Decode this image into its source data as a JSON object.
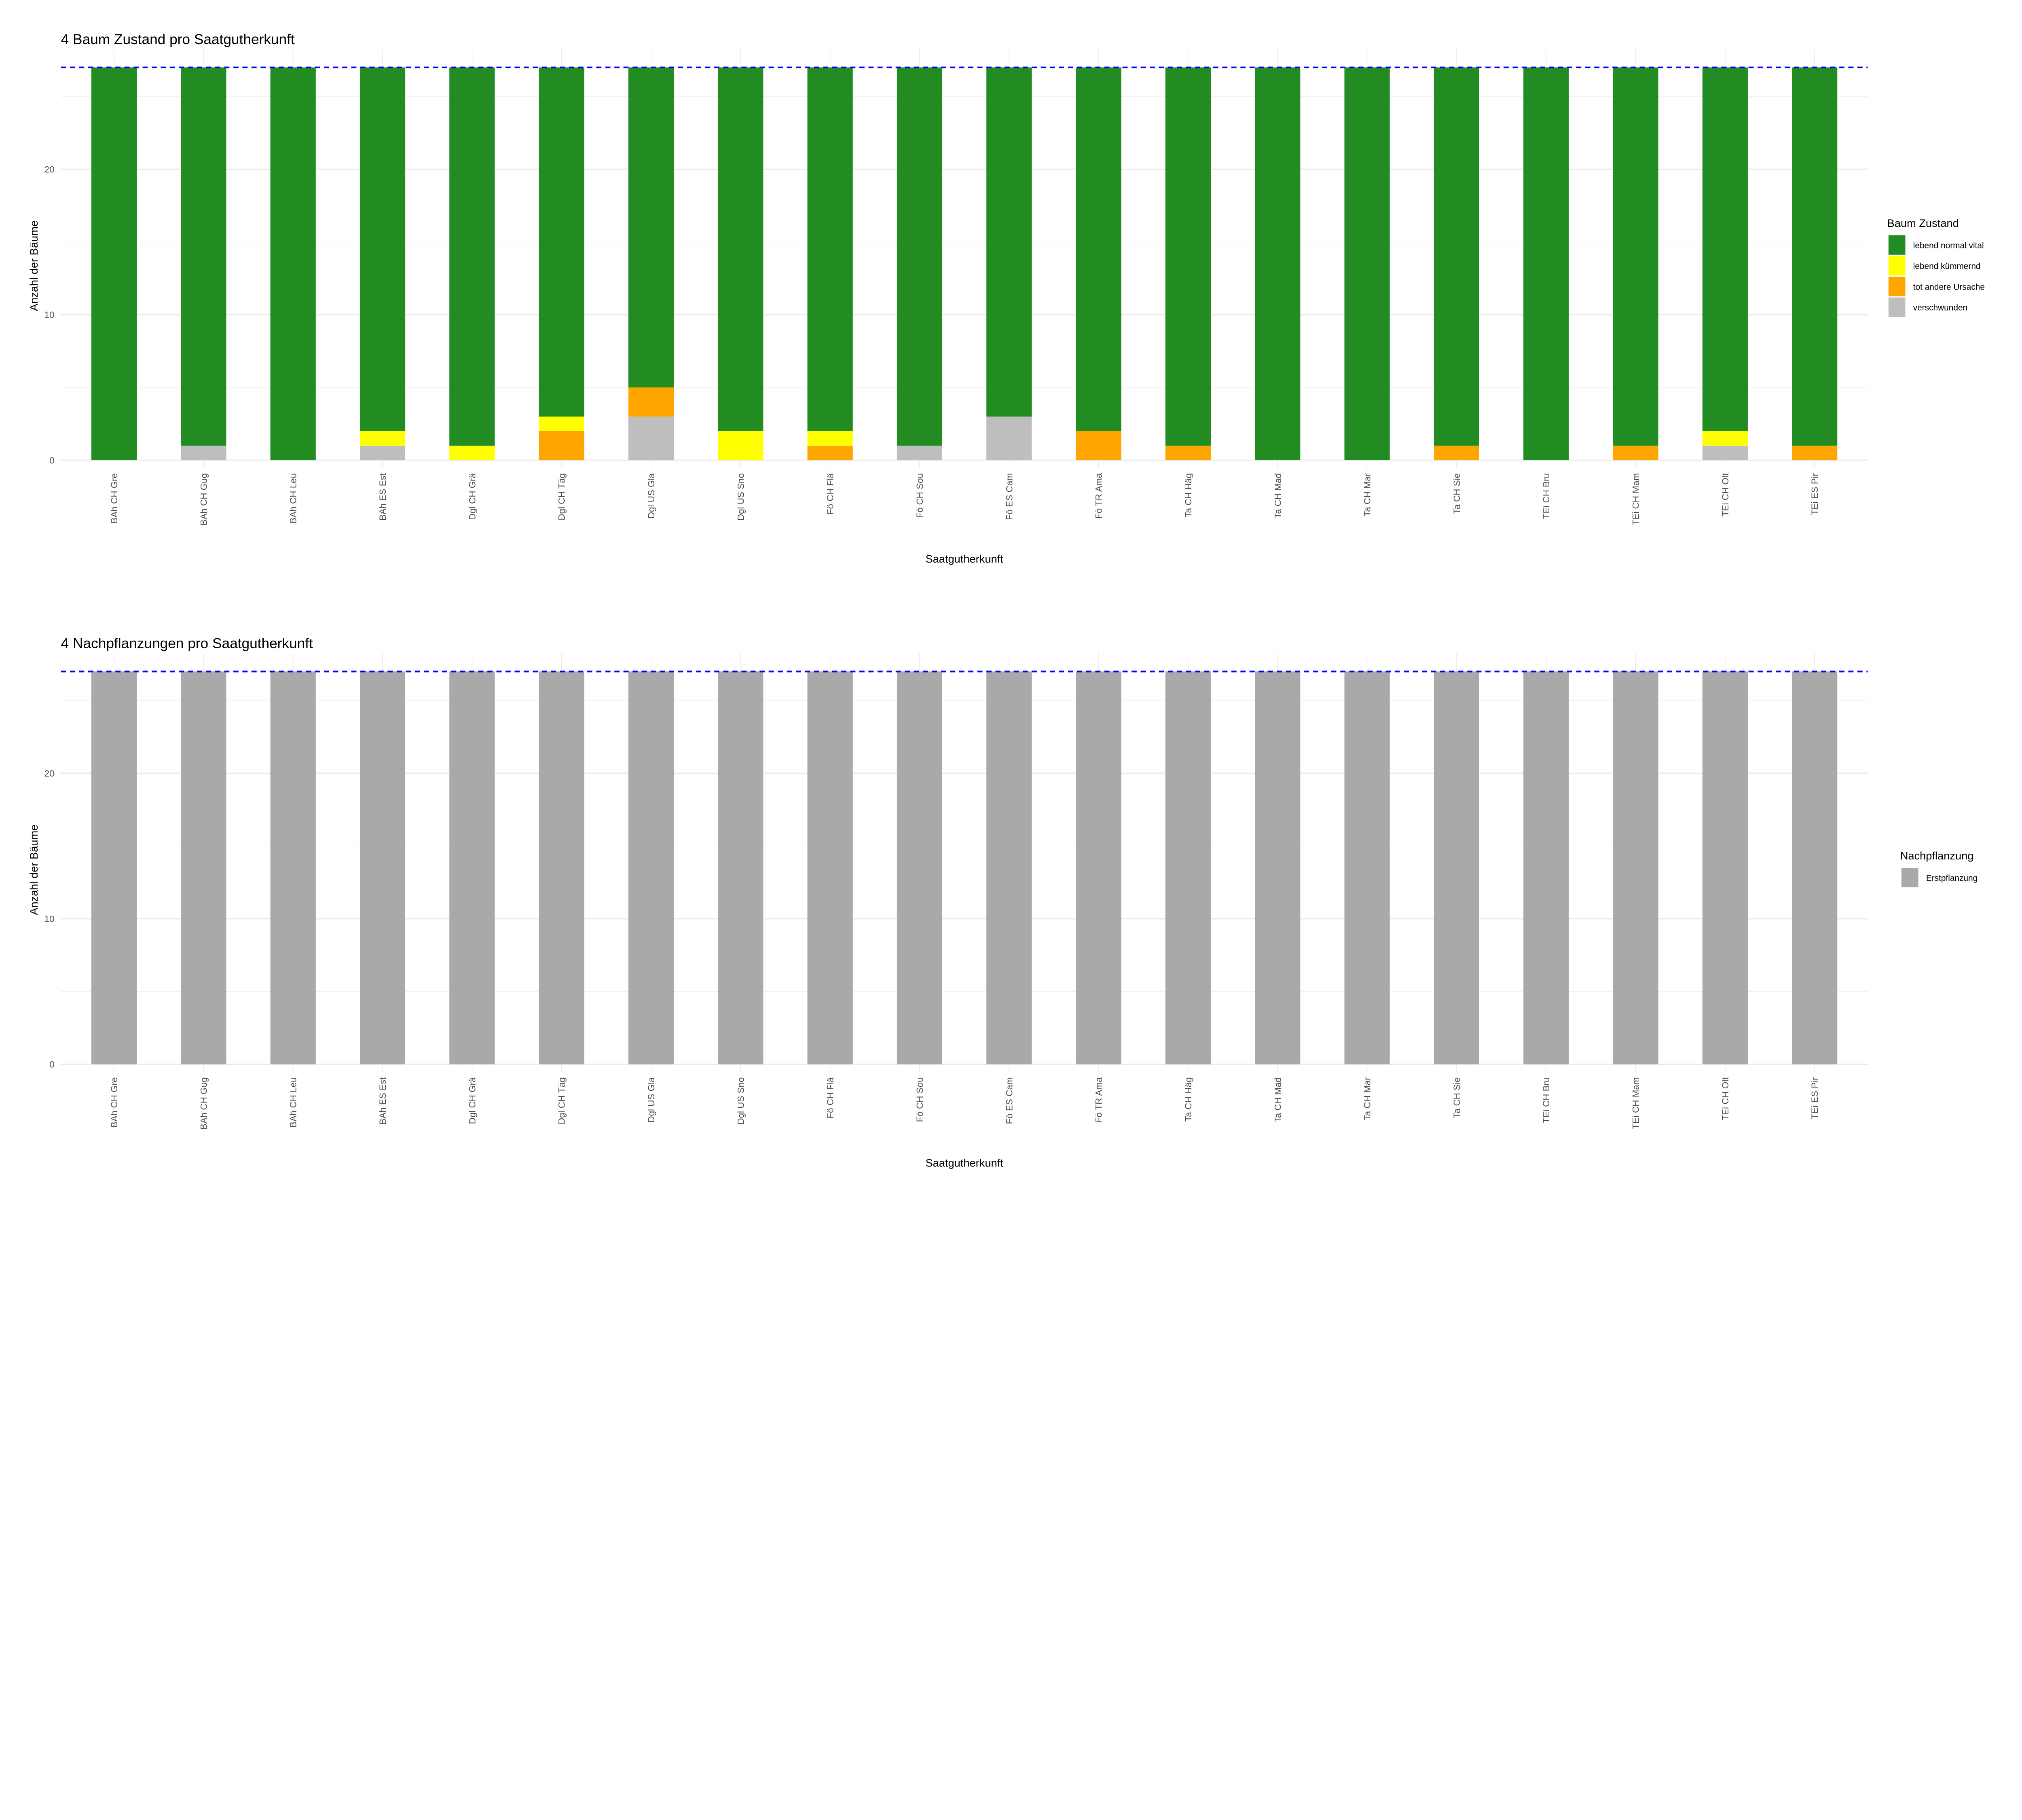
{
  "chart_data": [
    {
      "type": "bar",
      "stacked": true,
      "title": "4 Baum Zustand pro Saatgutherkunft",
      "xlabel": "Saatgutherkunft",
      "ylabel": "Anzahl der Bäume",
      "ylim": [
        0,
        27
      ],
      "yticks": [
        0,
        10,
        20
      ],
      "grid": true,
      "reference_line": {
        "y": 27,
        "style": "dashed",
        "color": "#0000FF"
      },
      "legend": {
        "title": "Baum Zustand",
        "position": "right"
      },
      "categories": [
        "BAh CH Gre",
        "BAh CH Gug",
        "BAh CH Leu",
        "BAh ES Est",
        "Dgl CH Grä",
        "Dgl CH Täg",
        "Dgl US Gla",
        "Dgl US Sno",
        "Fö CH Flä",
        "Fö CH Sou",
        "Fö ES Cam",
        "Fö TR Ama",
        "Ta CH Häg",
        "Ta CH Mad",
        "Ta CH Mar",
        "Ta CH Sie",
        "TEi CH Bru",
        "TEi CH Mam",
        "TEi CH Olt",
        "TEi ES Pir"
      ],
      "series": [
        {
          "name": "lebend normal vital",
          "color": "#228B22",
          "values": [
            27,
            26,
            27,
            25,
            26,
            24,
            22,
            25,
            25,
            26,
            24,
            25,
            26,
            27,
            27,
            26,
            27,
            26,
            25,
            26
          ]
        },
        {
          "name": "lebend kümmernd",
          "color": "#FFFF00",
          "values": [
            0,
            0,
            0,
            1,
            1,
            1,
            0,
            2,
            1,
            0,
            0,
            0,
            0,
            0,
            0,
            0,
            0,
            0,
            1,
            0
          ]
        },
        {
          "name": "tot andere Ursache",
          "color": "#FFA500",
          "values": [
            0,
            0,
            0,
            0,
            0,
            2,
            2,
            0,
            1,
            0,
            0,
            2,
            1,
            0,
            0,
            1,
            0,
            1,
            0,
            1
          ]
        },
        {
          "name": "verschwunden",
          "color": "#BEBEBE",
          "values": [
            0,
            1,
            0,
            1,
            0,
            0,
            3,
            0,
            0,
            1,
            3,
            0,
            0,
            0,
            0,
            0,
            0,
            0,
            1,
            0
          ]
        }
      ]
    },
    {
      "type": "bar",
      "stacked": true,
      "title": "4 Nachpflanzungen pro Saatgutherkunft",
      "xlabel": "Saatgutherkunft",
      "ylabel": "Anzahl der Bäume",
      "ylim": [
        0,
        27
      ],
      "yticks": [
        0,
        10,
        20
      ],
      "grid": true,
      "reference_line": {
        "y": 27,
        "style": "dashed",
        "color": "#0000FF"
      },
      "legend": {
        "title": "Nachpflanzung",
        "position": "right"
      },
      "categories": [
        "BAh CH Gre",
        "BAh CH Gug",
        "BAh CH Leu",
        "BAh ES Est",
        "Dgl CH Grä",
        "Dgl CH Täg",
        "Dgl US Gla",
        "Dgl US Sno",
        "Fö CH Flä",
        "Fö CH Sou",
        "Fö ES Cam",
        "Fö TR Ama",
        "Ta CH Häg",
        "Ta CH Mad",
        "Ta CH Mar",
        "Ta CH Sie",
        "TEi CH Bru",
        "TEi CH Mam",
        "TEi CH Olt",
        "TEi ES Pir"
      ],
      "series": [
        {
          "name": "Erstpflanzung",
          "color": "#A9A9A9",
          "values": [
            27,
            27,
            27,
            27,
            27,
            27,
            27,
            27,
            27,
            27,
            27,
            27,
            27,
            27,
            27,
            27,
            27,
            27,
            27,
            27
          ]
        }
      ]
    }
  ]
}
